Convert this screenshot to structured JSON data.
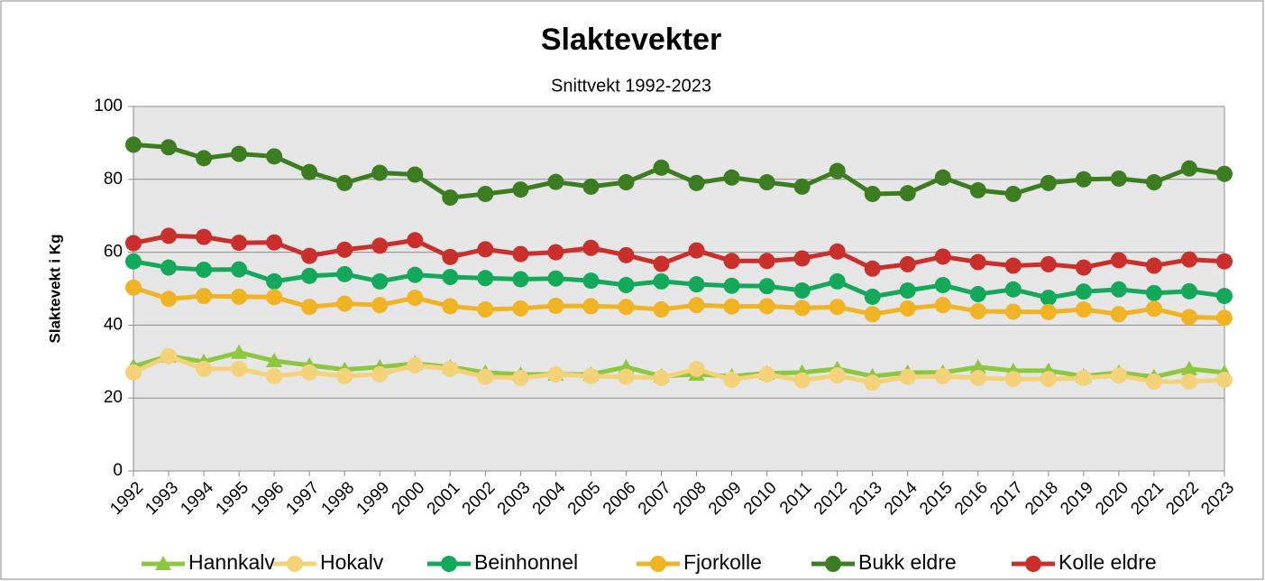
{
  "chart_data": {
    "type": "line",
    "title": "Slaktevekter",
    "subtitle": "Snittvekt 1992-2023",
    "y_label": "Slaktevekt i Kg",
    "categories": [
      "1992",
      "1993",
      "1994",
      "1995",
      "1996",
      "1997",
      "1998",
      "1999",
      "2000",
      "2001",
      "2002",
      "2003",
      "2004",
      "2005",
      "2006",
      "2007",
      "2008",
      "2009",
      "2010",
      "2011",
      "2012",
      "2013",
      "2014",
      "2015",
      "2016",
      "2017",
      "2018",
      "2019",
      "2020",
      "2021",
      "2022",
      "2023"
    ],
    "ylim": [
      0,
      100
    ],
    "yticks": [
      0,
      20,
      40,
      60,
      80,
      100
    ],
    "grid": true,
    "legend": "bottom",
    "series": [
      {
        "name": "Hannkalv",
        "color": "#8dc63f",
        "marker": "triangle",
        "values": [
          28.7,
          31.5,
          30,
          32.5,
          30.2,
          29,
          27.8,
          28.5,
          29.5,
          28.5,
          27,
          26.5,
          26.5,
          26.5,
          28.5,
          26,
          26.5,
          26,
          26.8,
          27,
          28,
          26,
          27,
          27,
          28.5,
          27.5,
          27.5,
          26,
          27,
          25.8,
          28,
          27
        ]
      },
      {
        "name": "Hokalv",
        "color": "#f3d27a",
        "marker": "circle",
        "values": [
          27,
          31.5,
          28,
          28,
          26,
          27,
          26,
          26.5,
          29,
          28,
          25.8,
          25.5,
          26.5,
          26,
          25.8,
          25.5,
          28,
          25,
          26.5,
          24.8,
          26.2,
          24.2,
          25.8,
          26,
          25.5,
          25.2,
          25.2,
          25.5,
          26.2,
          24.5,
          24.5,
          25
        ]
      },
      {
        "name": "Beinhonnel",
        "color": "#14a95a",
        "marker": "circle",
        "values": [
          57.5,
          55.8,
          55.2,
          55.3,
          52,
          53.5,
          54,
          52,
          53.8,
          53.2,
          52.9,
          52.6,
          52.8,
          52.2,
          51,
          52,
          51.2,
          50.8,
          50.7,
          49.5,
          52,
          47.8,
          49.5,
          51,
          48.5,
          49.8,
          47.5,
          49.2,
          49.8,
          48.8,
          49.3,
          48
        ]
      },
      {
        "name": "Fjorkolle",
        "color": "#f0b323",
        "marker": "circle",
        "values": [
          50.3,
          47.2,
          48,
          47.8,
          47.7,
          45,
          45.9,
          45.5,
          47.5,
          45.2,
          44.3,
          44.6,
          45.3,
          45.2,
          45,
          44.3,
          45.5,
          45.1,
          45.2,
          44.7,
          45,
          43,
          44.6,
          45.5,
          43.8,
          43.7,
          43.6,
          44.3,
          43,
          44.5,
          42.2,
          42
        ]
      },
      {
        "name": "Bukk eldre",
        "color": "#3c7d22",
        "marker": "circle",
        "values": [
          89.5,
          88.8,
          85.8,
          87,
          86.3,
          82,
          79,
          81.8,
          81.3,
          75,
          76,
          77.2,
          79.3,
          78,
          79.2,
          83.2,
          79,
          80.5,
          79.2,
          78,
          82.3,
          76,
          76.2,
          80.5,
          77,
          76,
          79,
          80,
          80.2,
          79.2,
          83,
          81.5
        ]
      },
      {
        "name": "Kolle eldre",
        "color": "#c9302c",
        "marker": "circle",
        "values": [
          62.5,
          64.5,
          64.2,
          62.6,
          62.7,
          59,
          60.7,
          61.8,
          63.3,
          58.7,
          60.8,
          59.5,
          60,
          61.2,
          59.2,
          56.8,
          60.5,
          57.6,
          57.6,
          58.3,
          60.2,
          55.5,
          56.7,
          58.8,
          57.3,
          56.3,
          56.7,
          55.8,
          57.8,
          56.3,
          58,
          57.5
        ]
      }
    ]
  }
}
